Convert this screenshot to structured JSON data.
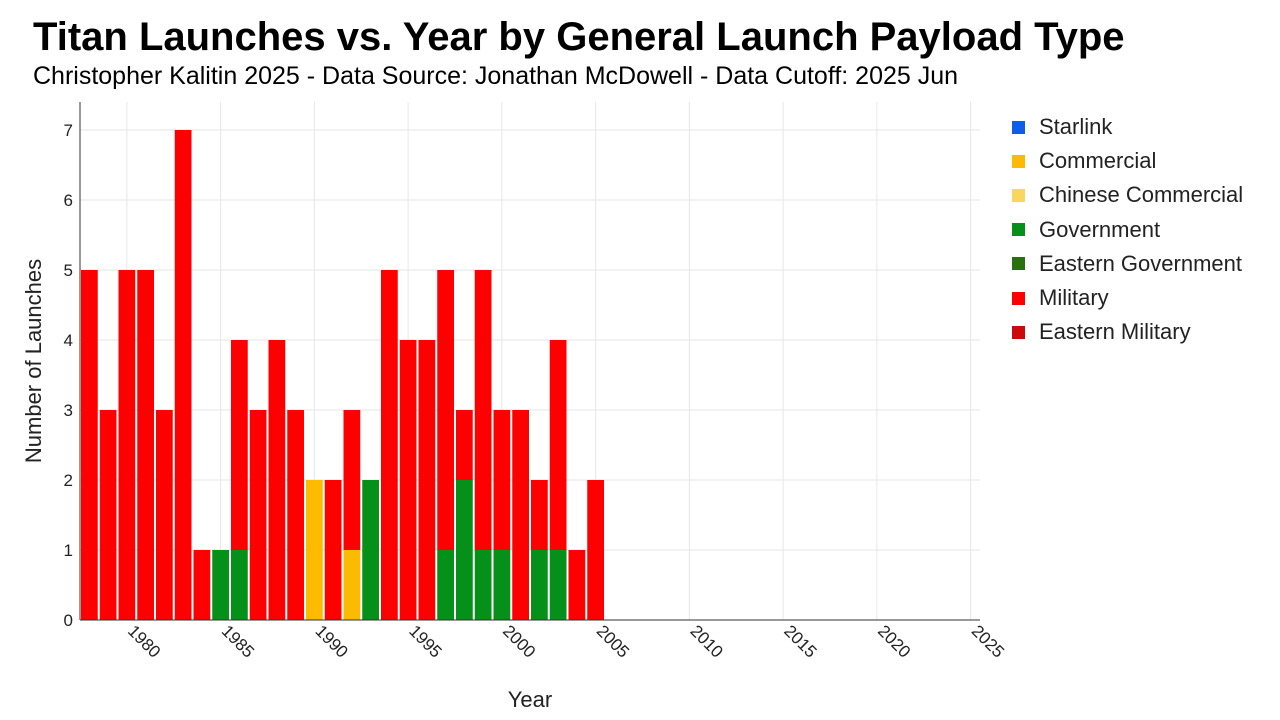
{
  "chart_data": {
    "type": "bar",
    "stacked": true,
    "title": "Titan Launches vs. Year by General Launch Payload Type",
    "subtitle": "Christopher Kalitin 2025 - Data Source: Jonathan McDowell - Data Cutoff: 2025 Jun",
    "xlabel": "Year",
    "ylabel": "Number of Launches",
    "xlim": [
      1978,
      2025.5
    ],
    "ylim": [
      0,
      7.4
    ],
    "x_ticks": [
      1980,
      1985,
      1990,
      1995,
      2000,
      2005,
      2010,
      2015,
      2020,
      2025
    ],
    "y_ticks": [
      0,
      1,
      2,
      3,
      4,
      5,
      6,
      7
    ],
    "grid": true,
    "legend_position": "right",
    "x": [
      1978,
      1979,
      1980,
      1981,
      1982,
      1983,
      1984,
      1985,
      1986,
      1987,
      1988,
      1989,
      1990,
      1991,
      1992,
      1993,
      1994,
      1995,
      1996,
      1997,
      1998,
      1999,
      2000,
      2001,
      2002,
      2003,
      2004,
      2005
    ],
    "series": [
      {
        "name": "Starlink",
        "color": "#0a5fe6",
        "values": [
          0,
          0,
          0,
          0,
          0,
          0,
          0,
          0,
          0,
          0,
          0,
          0,
          0,
          0,
          0,
          0,
          0,
          0,
          0,
          0,
          0,
          0,
          0,
          0,
          0,
          0,
          0,
          0
        ]
      },
      {
        "name": "Commercial",
        "color": "#fdbb00",
        "values": [
          0,
          0,
          0,
          0,
          0,
          0,
          0,
          0,
          0,
          0,
          0,
          0,
          2,
          0,
          1,
          0,
          0,
          0,
          0,
          0,
          0,
          0,
          0,
          0,
          0,
          0,
          0,
          0
        ]
      },
      {
        "name": "Chinese Commercial",
        "color": "#f9d65c",
        "values": [
          0,
          0,
          0,
          0,
          0,
          0,
          0,
          0,
          0,
          0,
          0,
          0,
          0,
          0,
          0,
          0,
          0,
          0,
          0,
          0,
          0,
          0,
          0,
          0,
          0,
          0,
          0,
          0
        ]
      },
      {
        "name": "Government",
        "color": "#05901a",
        "values": [
          0,
          0,
          0,
          0,
          0,
          0,
          0,
          1,
          1,
          0,
          0,
          0,
          0,
          0,
          0,
          2,
          0,
          0,
          0,
          1,
          2,
          1,
          1,
          0,
          1,
          1,
          0,
          0
        ]
      },
      {
        "name": "Eastern Government",
        "color": "#2a7012",
        "values": [
          0,
          0,
          0,
          0,
          0,
          0,
          0,
          0,
          0,
          0,
          0,
          0,
          0,
          0,
          0,
          0,
          0,
          0,
          0,
          0,
          0,
          0,
          0,
          0,
          0,
          0,
          0,
          0
        ]
      },
      {
        "name": "Military",
        "color": "#ff0000",
        "values": [
          5,
          3,
          5,
          5,
          3,
          7,
          1,
          0,
          3,
          3,
          4,
          3,
          0,
          2,
          2,
          0,
          5,
          4,
          4,
          4,
          1,
          4,
          2,
          3,
          1,
          3,
          1,
          2
        ]
      },
      {
        "name": "Eastern Military",
        "color": "#cc0a0a",
        "values": [
          0,
          0,
          0,
          0,
          0,
          0,
          0,
          0,
          0,
          0,
          0,
          0,
          0,
          0,
          0,
          0,
          0,
          0,
          0,
          0,
          0,
          0,
          0,
          0,
          0,
          0,
          0,
          0
        ]
      }
    ]
  }
}
